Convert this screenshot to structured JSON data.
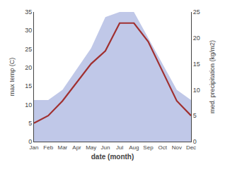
{
  "chart_data": {
    "type": "line",
    "categories": [
      "Jan",
      "Feb",
      "Mar",
      "Apr",
      "May",
      "Jun",
      "Jul",
      "Aug",
      "Sep",
      "Oct",
      "Nov",
      "Dec"
    ],
    "xlabel": "date (month)",
    "ylabel": "max temp (C)",
    "y2label": "med. precipitation (kg/m2)",
    "series": [
      {
        "type": "area",
        "color": "#c0c8e8",
        "axis": "y2",
        "values": [
          8,
          8,
          10,
          14,
          18,
          24,
          25,
          25,
          20,
          15,
          10,
          8
        ]
      },
      {
        "type": "line",
        "color": "#a03030",
        "values": [
          5,
          7,
          11,
          16,
          21,
          24.5,
          32,
          32,
          27,
          19,
          11,
          7
        ]
      }
    ],
    "ylim": [
      0,
      35
    ],
    "yticks": [
      0,
      5,
      10,
      15,
      20,
      25,
      30,
      35
    ],
    "y2lim": [
      0,
      25
    ],
    "y2ticks": [
      0,
      5,
      10,
      15,
      20,
      25
    ],
    "grid": false
  }
}
